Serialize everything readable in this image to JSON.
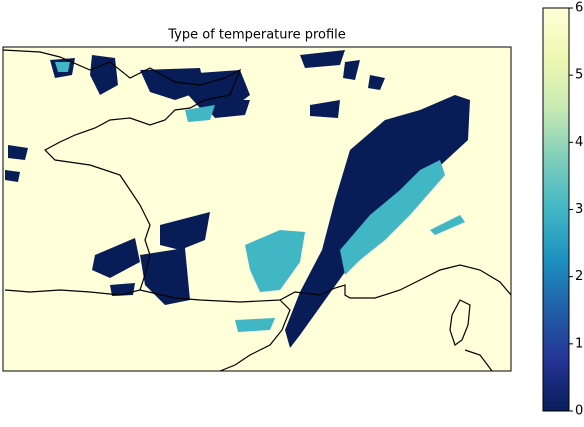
{
  "chart_data": {
    "type": "map",
    "title": "Type of temperature profile",
    "colorbar": {
      "lim": [
        0,
        6
      ],
      "ticks": [
        0,
        1,
        2,
        3,
        4,
        5,
        6
      ],
      "colors": [
        "#081d58",
        "#253494",
        "#225ea8",
        "#1d91c0",
        "#41b6c4",
        "#7fcdbb",
        "#c7e9b4",
        "#edf8b1",
        "#ffffd9"
      ]
    }
  }
}
